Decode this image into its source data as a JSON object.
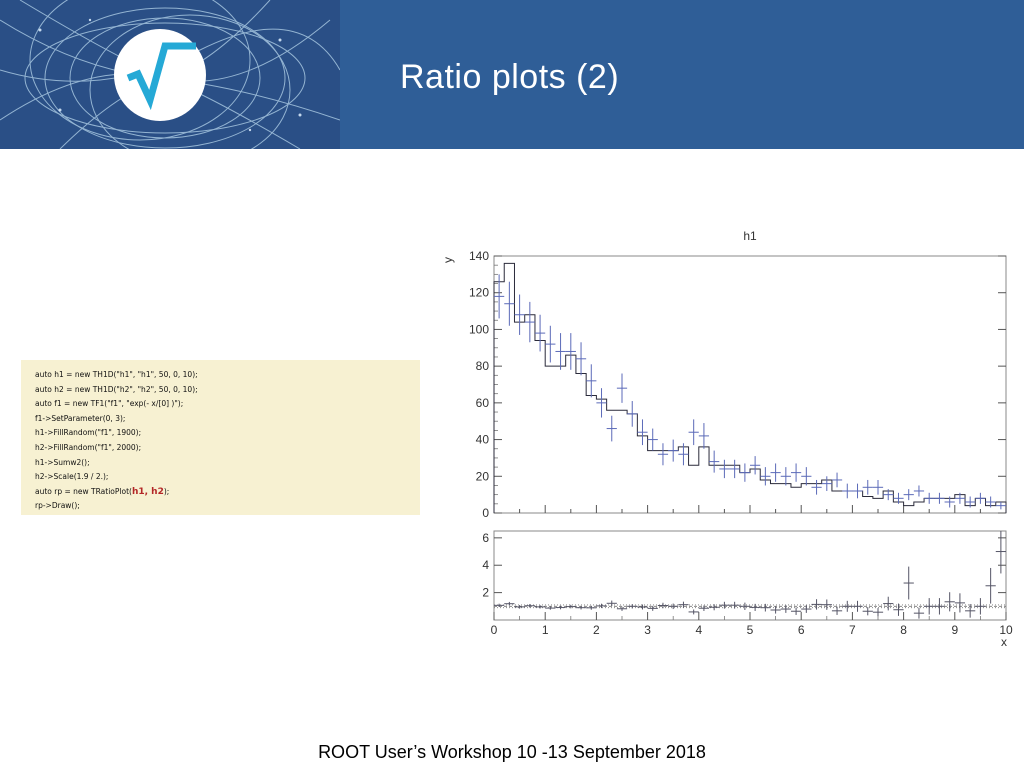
{
  "header": {
    "title": "Ratio plots (2)",
    "background": "#2f5e97",
    "logo": "root-sqrt-logo-icon"
  },
  "code": {
    "lines": [
      "auto h1 = new TH1D(\"h1\", \"h1\", 50, 0, 10);",
      "auto h2 = new TH1D(\"h2\", \"h2\", 50, 0, 10);",
      "auto f1 = new TF1(\"f1\", \"exp(- x/[0] )\");",
      "f1->SetParameter(0, 3);",
      "h1->FillRandom(\"f1\", 1900);",
      "h2->FillRandom(\"f1\", 2000);",
      "h1->Sumw2();",
      "h2->Scale(1.9 / 2.);",
      "auto rp = new TRatioPlot(",
      "rp->Draw();"
    ],
    "highlight": "h1, h2",
    "highlight_suffix": ");",
    "highlight_line": 8,
    "background": "#f7f1d2",
    "highlight_color": "#b32626"
  },
  "chart_data": [
    {
      "type": "line",
      "title": "h1",
      "xlabel": "",
      "ylabel": "y",
      "xlim": [
        0,
        10
      ],
      "ylim": [
        0,
        140
      ],
      "yticks": [
        0,
        20,
        40,
        60,
        80,
        100,
        120,
        140
      ],
      "grid": false,
      "bin_width": 0.2,
      "series": [
        {
          "style": "step-histogram",
          "color": "#2a2a3a",
          "values": [
            126,
            136,
            104,
            108,
            94,
            80,
            80,
            86,
            76,
            64,
            62,
            56,
            56,
            54,
            42,
            34,
            34,
            34,
            36,
            26,
            36,
            26,
            26,
            26,
            22,
            24,
            18,
            16,
            16,
            14,
            16,
            16,
            18,
            12,
            12,
            12,
            9,
            8,
            12,
            6,
            4,
            6,
            8,
            8,
            8,
            10,
            4,
            8,
            4,
            6
          ]
        },
        {
          "style": "error-bars",
          "color": "#5b6ab8",
          "values": [
            118,
            114,
            108,
            104,
            98,
            92,
            88,
            88,
            84,
            72,
            60,
            46,
            68,
            54,
            44,
            40,
            32,
            34,
            32,
            44,
            42,
            28,
            24,
            24,
            22,
            26,
            20,
            22,
            20,
            22,
            20,
            14,
            16,
            18,
            12,
            12,
            14,
            14,
            10,
            8,
            10,
            12,
            8,
            8,
            6,
            8,
            6,
            8,
            6,
            4
          ],
          "errors": [
            12,
            12,
            11,
            11,
            10,
            10,
            10,
            10,
            9,
            9,
            8,
            7,
            8,
            7,
            7,
            6,
            6,
            6,
            6,
            7,
            7,
            6,
            5,
            5,
            5,
            5,
            5,
            5,
            5,
            5,
            5,
            4,
            4,
            4,
            4,
            4,
            4,
            4,
            3,
            3,
            3,
            3,
            3,
            3,
            3,
            3,
            3,
            3,
            3,
            2
          ]
        }
      ]
    },
    {
      "type": "scatter",
      "title": "",
      "xlabel": "x",
      "ylabel": "",
      "xlim": [
        0,
        10
      ],
      "ylim": [
        0,
        6.5
      ],
      "yticks": [
        2,
        4,
        6
      ],
      "xticks": [
        0,
        1,
        2,
        3,
        4,
        5,
        6,
        7,
        8,
        9,
        10
      ],
      "reference_lines": [
        1,
        0.9,
        1.1
      ],
      "series": [
        {
          "style": "ratio-error-bars",
          "color": "#555566",
          "values": [
            1.07,
            1.19,
            0.96,
            1.04,
            0.96,
            0.87,
            0.91,
            0.98,
            0.9,
            0.89,
            1.03,
            1.22,
            0.82,
            1.0,
            0.95,
            0.85,
            1.06,
            1.0,
            1.12,
            0.59,
            0.86,
            0.93,
            1.08,
            1.08,
            1.0,
            0.92,
            0.9,
            0.73,
            0.8,
            0.64,
            0.8,
            1.14,
            1.12,
            0.67,
            1.0,
            1.0,
            0.64,
            0.57,
            1.2,
            0.75,
            2.7,
            0.5,
            1.0,
            1.0,
            1.33,
            1.25,
            0.67,
            1.0,
            2.5,
            5.0
          ],
          "errors": [
            0.12,
            0.13,
            0.13,
            0.13,
            0.12,
            0.12,
            0.13,
            0.13,
            0.13,
            0.14,
            0.16,
            0.2,
            0.15,
            0.16,
            0.18,
            0.18,
            0.2,
            0.2,
            0.22,
            0.18,
            0.2,
            0.22,
            0.25,
            0.25,
            0.27,
            0.26,
            0.28,
            0.26,
            0.28,
            0.27,
            0.28,
            0.38,
            0.38,
            0.3,
            0.4,
            0.4,
            0.3,
            0.3,
            0.5,
            0.45,
            1.2,
            0.4,
            0.6,
            0.6,
            0.7,
            0.7,
            0.5,
            0.6,
            1.3,
            1.6
          ]
        }
      ]
    }
  ],
  "footer": {
    "text": "ROOT User’s Workshop  10 -13 September 2018"
  }
}
